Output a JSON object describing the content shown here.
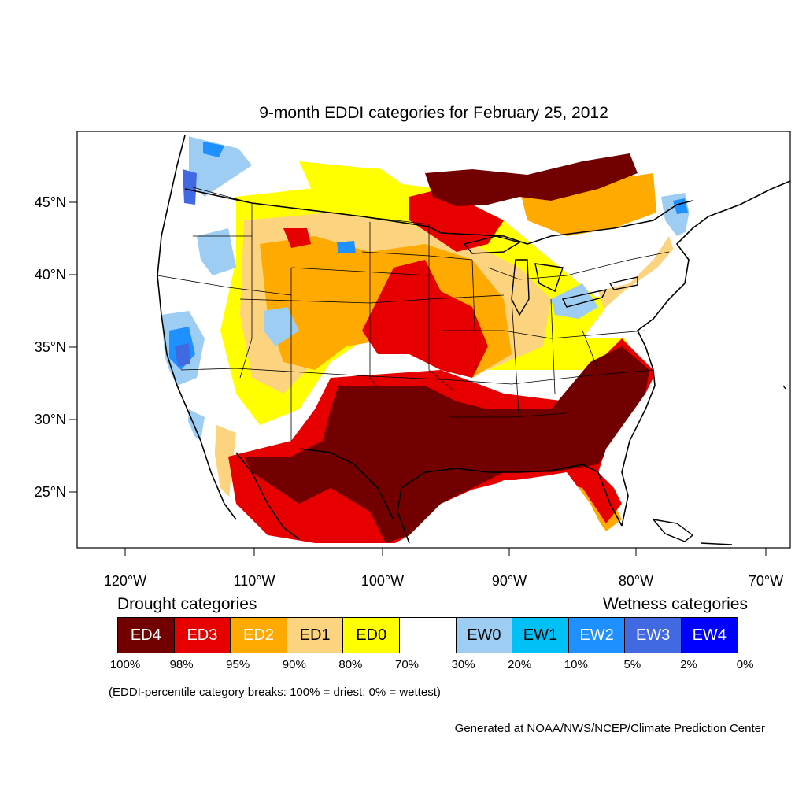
{
  "title": "9-month EDDI categories for February 25, 2012",
  "map": {
    "lat_labels": [
      "45°N",
      "40°N",
      "35°N",
      "30°N",
      "25°N"
    ],
    "lon_labels": [
      "120°W",
      "110°W",
      "100°W",
      "90°W",
      "80°W",
      "70°W"
    ]
  },
  "legend": {
    "drought_heading": "Drought categories",
    "wetness_heading": "Wetness categories",
    "categories": [
      {
        "label": "ED4",
        "color": "#730000",
        "text_color": "#ffffff"
      },
      {
        "label": "ED3",
        "color": "#e60000",
        "text_color": "#ffffff"
      },
      {
        "label": "ED2",
        "color": "#ffaa00",
        "text_color": "#ffffff"
      },
      {
        "label": "ED1",
        "color": "#fcd37f",
        "text_color": "#000000"
      },
      {
        "label": "ED0",
        "color": "#ffff00",
        "text_color": "#000000"
      },
      {
        "label": "",
        "color": "#ffffff",
        "text_color": "#000000"
      },
      {
        "label": "EW0",
        "color": "#9dcdf2",
        "text_color": "#000000"
      },
      {
        "label": "EW1",
        "color": "#00c0f5",
        "text_color": "#000000"
      },
      {
        "label": "EW2",
        "color": "#1e90ff",
        "text_color": "#ffffff"
      },
      {
        "label": "EW3",
        "color": "#4169e1",
        "text_color": "#ffffff"
      },
      {
        "label": "EW4",
        "color": "#0000ff",
        "text_color": "#ffffff"
      }
    ],
    "percentiles": [
      "100%",
      "98%",
      "95%",
      "90%",
      "80%",
      "70%",
      "30%",
      "20%",
      "10%",
      "5%",
      "2%",
      "0%"
    ],
    "note": "(EDDI-percentile category breaks: 100% = driest; 0% = wettest)"
  },
  "credit": "Generated at NOAA/NWS/NCEP/Climate Prediction Center"
}
